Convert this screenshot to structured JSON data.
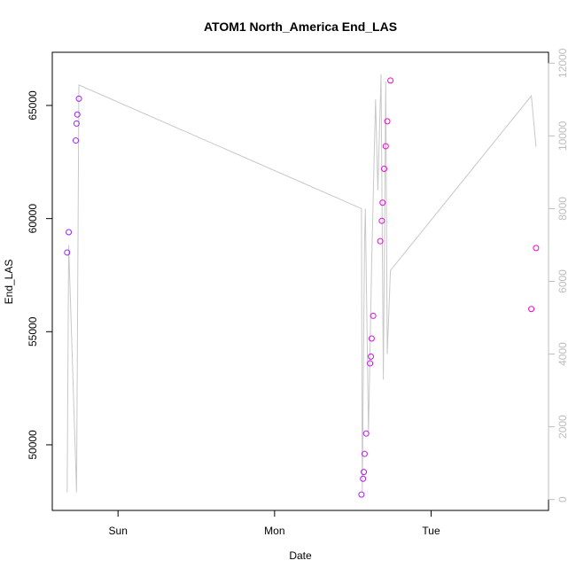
{
  "chart_data": {
    "type": "scatter",
    "title": "ATOM1 North_America End_LAS",
    "xlabel": "Date",
    "ylabel": "End_LAS",
    "x_ticks": [
      {
        "label": "Sun",
        "value": 0.0
      },
      {
        "label": "Mon",
        "value": 1.0
      },
      {
        "label": "Tue",
        "value": 2.0
      }
    ],
    "y_ticks": [
      50000,
      55000,
      60000,
      65000
    ],
    "y_range": [
      47100,
      67350
    ],
    "y2_ticks": [
      0,
      2000,
      4000,
      6000,
      8000,
      10000,
      12000
    ],
    "y2_range": [
      -300,
      12300
    ],
    "x_range": [
      -0.42,
      2.75
    ],
    "legend": "none",
    "grid": false,
    "series": [
      {
        "kind": "points",
        "axis": "left",
        "style": "open circles, violet-to-magenta gradient",
        "points": [
          {
            "x": -0.325,
            "y": 58500
          },
          {
            "x": -0.315,
            "y": 59400
          },
          {
            "x": -0.27,
            "y": 63450
          },
          {
            "x": -0.265,
            "y": 64200
          },
          {
            "x": -0.26,
            "y": 64600
          },
          {
            "x": -0.25,
            "y": 65300
          },
          {
            "x": 1.555,
            "y": 47800
          },
          {
            "x": 1.565,
            "y": 48500
          },
          {
            "x": 1.57,
            "y": 48800
          },
          {
            "x": 1.575,
            "y": 49600
          },
          {
            "x": 1.585,
            "y": 50500
          },
          {
            "x": 1.61,
            "y": 53600
          },
          {
            "x": 1.615,
            "y": 53900
          },
          {
            "x": 1.62,
            "y": 54700
          },
          {
            "x": 1.63,
            "y": 55700
          },
          {
            "x": 1.675,
            "y": 59000
          },
          {
            "x": 1.685,
            "y": 59900
          },
          {
            "x": 1.69,
            "y": 60700
          },
          {
            "x": 1.7,
            "y": 62200
          },
          {
            "x": 1.71,
            "y": 63200
          },
          {
            "x": 1.72,
            "y": 64300
          },
          {
            "x": 1.74,
            "y": 66100
          },
          {
            "x": 2.64,
            "y": 56000
          },
          {
            "x": 2.67,
            "y": 58700
          }
        ]
      },
      {
        "kind": "line",
        "axis": "right",
        "color": "#c8c8c8",
        "points": [
          {
            "x": -0.325,
            "y": 200
          },
          {
            "x": -0.315,
            "y": 7000
          },
          {
            "x": -0.265,
            "y": 200
          },
          {
            "x": -0.25,
            "y": 11400
          },
          {
            "x": 1.555,
            "y": 8000
          },
          {
            "x": 1.56,
            "y": 200
          },
          {
            "x": 1.575,
            "y": 7100
          },
          {
            "x": 1.58,
            "y": 8000
          },
          {
            "x": 1.6,
            "y": 1800
          },
          {
            "x": 1.62,
            "y": 6500
          },
          {
            "x": 1.645,
            "y": 11000
          },
          {
            "x": 1.66,
            "y": 8500
          },
          {
            "x": 1.68,
            "y": 11700
          },
          {
            "x": 1.695,
            "y": 3300
          },
          {
            "x": 1.71,
            "y": 11500
          },
          {
            "x": 1.72,
            "y": 4000
          },
          {
            "x": 1.74,
            "y": 6300
          },
          {
            "x": 2.64,
            "y": 11100
          },
          {
            "x": 2.67,
            "y": 9700
          }
        ]
      }
    ]
  }
}
